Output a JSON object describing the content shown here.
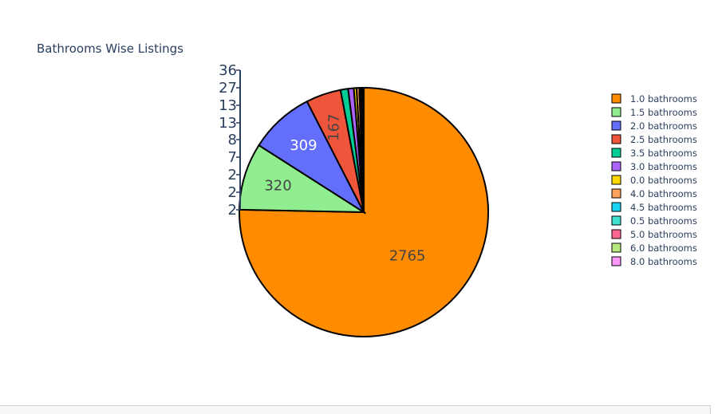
{
  "chart_data": {
    "type": "pie",
    "title": "Bathrooms Wise Listings",
    "slices": [
      {
        "label": "1.0 bathrooms",
        "value": 2765,
        "color": "#ff8c00"
      },
      {
        "label": "1.5 bathrooms",
        "value": 320,
        "color": "#90ee90"
      },
      {
        "label": "2.0 bathrooms",
        "value": 309,
        "color": "#636efa"
      },
      {
        "label": "2.5 bathrooms",
        "value": 167,
        "color": "#ef553b"
      },
      {
        "label": "3.5 bathrooms",
        "value": 36,
        "color": "#00cc96"
      },
      {
        "label": "3.0 bathrooms",
        "value": 27,
        "color": "#ab63fa"
      },
      {
        "label": "0.0 bathrooms",
        "value": 13,
        "color": "#ffd700"
      },
      {
        "label": "4.0 bathrooms",
        "value": 13,
        "color": "#ffa15a"
      },
      {
        "label": "4.5 bathrooms",
        "value": 8,
        "color": "#19d3f3"
      },
      {
        "label": "0.5 bathrooms",
        "value": 7,
        "color": "#40e0d0"
      },
      {
        "label": "5.0 bathrooms",
        "value": 2,
        "color": "#ff6692"
      },
      {
        "label": "6.0 bathrooms",
        "value": 2,
        "color": "#b6e880"
      },
      {
        "label": "8.0 bathrooms",
        "value": 2,
        "color": "#ff97ff"
      }
    ],
    "legend_position": "right",
    "outside_label_values": [
      "36",
      "27",
      "13",
      "13",
      "8",
      "7",
      "2",
      "2",
      "2"
    ]
  }
}
